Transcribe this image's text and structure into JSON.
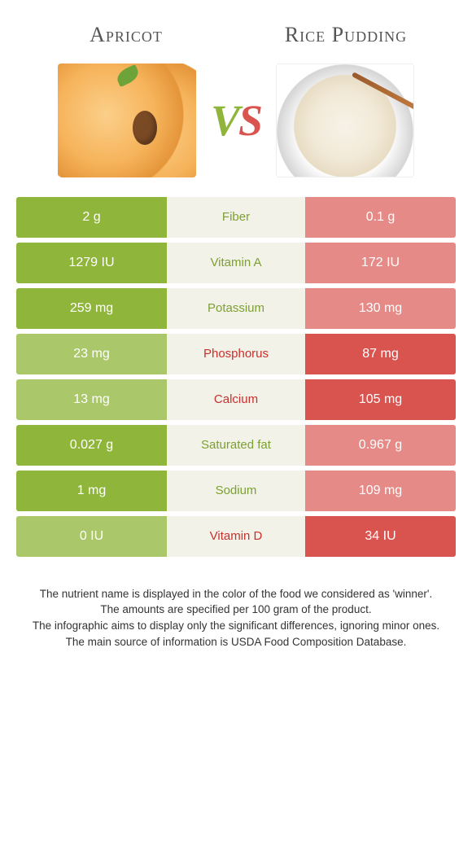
{
  "colors": {
    "left_win": "#8fb53a",
    "right_win": "#d9534f",
    "left_lose": "#aac86a",
    "right_lose": "#e58a87",
    "mid_bg": "#f2f2e9",
    "label_left_color": "#7ca031",
    "label_right_color": "#c9302c"
  },
  "foods": {
    "left": "Apricot",
    "right": "Rice Pudding"
  },
  "vs": {
    "v": "V",
    "s": "S"
  },
  "rows": [
    {
      "label": "Fiber",
      "left": "2 g",
      "right": "0.1 g",
      "winner": "left"
    },
    {
      "label": "Vitamin A",
      "left": "1279 IU",
      "right": "172 IU",
      "winner": "left"
    },
    {
      "label": "Potassium",
      "left": "259 mg",
      "right": "130 mg",
      "winner": "left"
    },
    {
      "label": "Phosphorus",
      "left": "23 mg",
      "right": "87 mg",
      "winner": "right"
    },
    {
      "label": "Calcium",
      "left": "13 mg",
      "right": "105 mg",
      "winner": "right"
    },
    {
      "label": "Saturated fat",
      "left": "0.027 g",
      "right": "0.967 g",
      "winner": "left"
    },
    {
      "label": "Sodium",
      "left": "1 mg",
      "right": "109 mg",
      "winner": "left"
    },
    {
      "label": "Vitamin D",
      "left": "0 IU",
      "right": "34 IU",
      "winner": "right"
    }
  ],
  "footer": [
    "The nutrient name is displayed in the color of the food we considered as 'winner'.",
    "The amounts are specified per 100 gram of the product.",
    "The infographic aims to display only the significant differences, ignoring minor ones.",
    "The main source of information is USDA Food Composition Database."
  ]
}
